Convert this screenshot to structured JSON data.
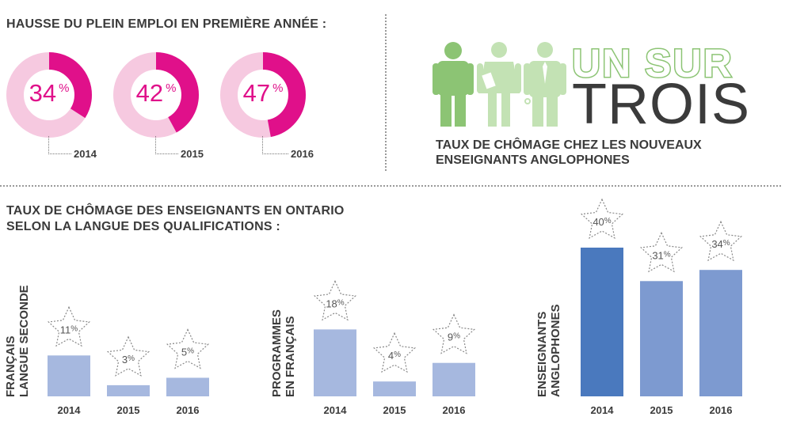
{
  "top_left": {
    "title": "HAUSSE DU PLEIN EMPLOI EN PREMIÈRE ANNÉE :",
    "donuts": [
      {
        "value": 34,
        "label": "34",
        "unit": "%",
        "year": "2014"
      },
      {
        "value": 42,
        "label": "42",
        "unit": "%",
        "year": "2015"
      },
      {
        "value": 47,
        "label": "47",
        "unit": "%",
        "year": "2016"
      }
    ]
  },
  "top_right": {
    "headline_line1": "UN SUR",
    "headline_line2": "TROIS",
    "subtitle_line1": "TAUX DE CHÔMAGE CHEZ LES NOUVEAUX",
    "subtitle_line2": "ENSEIGNANTS ANGLOPHONES"
  },
  "bottom": {
    "title_line1": "TAUX DE CHÔMAGE DES ENSEIGNANTS EN ONTARIO",
    "title_line2": "SELON LA LANGUE DES QUALIFICATIONS :"
  },
  "colors": {
    "pink": "#e0108a",
    "pink_light": "#f6c9e0",
    "green": "#8cc474",
    "green_light": "#c3e2b4",
    "dark_text": "#3b3b3b",
    "blue_light": "#a6b8df",
    "blue_mid": "#7d9ad0",
    "blue_dark": "#4a79be"
  },
  "chart_data": [
    {
      "type": "bar",
      "group_label_line1": "FRANÇAIS",
      "group_label_line2": "LANGUE SECONDE",
      "categories": [
        "2014",
        "2015",
        "2016"
      ],
      "values": [
        11,
        3,
        5
      ],
      "value_labels": [
        "11",
        "3",
        "5"
      ],
      "unit": "%"
    },
    {
      "type": "bar",
      "group_label_line1": "PROGRAMMES",
      "group_label_line2": "EN FRANÇAIS",
      "categories": [
        "2014",
        "2015",
        "2016"
      ],
      "values": [
        18,
        4,
        9
      ],
      "value_labels": [
        "18",
        "4",
        "9"
      ],
      "unit": "%"
    },
    {
      "type": "bar",
      "group_label_line1": "ENSEIGNANTS",
      "group_label_line2": "ANGLOPHONES",
      "categories": [
        "2014",
        "2015",
        "2016"
      ],
      "values": [
        40,
        31,
        34
      ],
      "value_labels": [
        "40",
        "31",
        "34"
      ],
      "unit": "%"
    }
  ]
}
